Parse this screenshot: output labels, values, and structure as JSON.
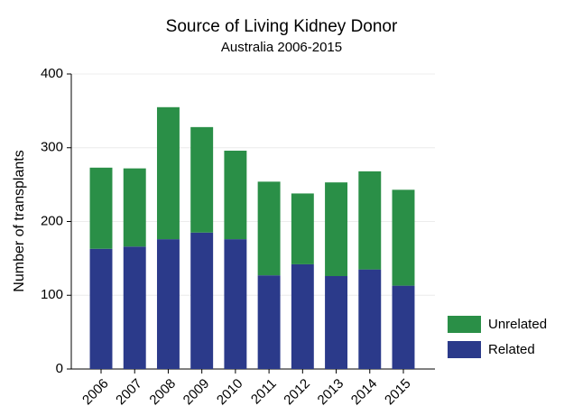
{
  "chart_data": {
    "type": "stacked_bar",
    "title": "Source of Living Kidney Donor",
    "subtitle": "Australia 2006-2015",
    "y_label": "Number of transplants",
    "categories": [
      "2006",
      "2007",
      "2008",
      "2009",
      "2010",
      "2011",
      "2012",
      "2013",
      "2014",
      "2015"
    ],
    "series": [
      {
        "name": "Related",
        "color": "#2b3a8a",
        "values": [
          163,
          166,
          176,
          185,
          176,
          127,
          142,
          126,
          135,
          113
        ]
      },
      {
        "name": "Unrelated",
        "color": "#2a8f47",
        "values": [
          110,
          106,
          179,
          143,
          120,
          127,
          96,
          127,
          133,
          130
        ]
      }
    ],
    "ylim": [
      0,
      400
    ],
    "yticks": [
      0,
      100,
      200,
      300,
      400
    ],
    "grid": true,
    "legend": "right"
  }
}
